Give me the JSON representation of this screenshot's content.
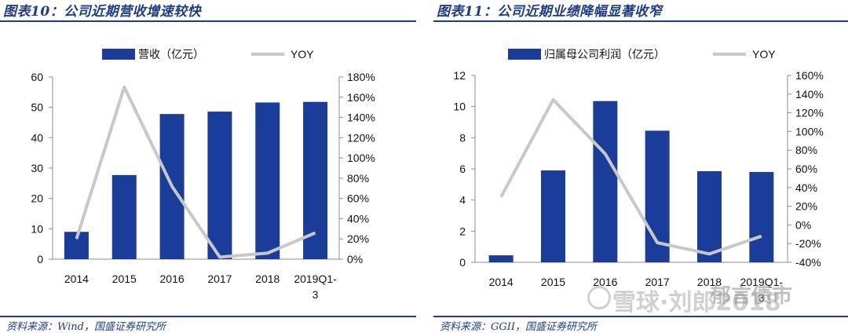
{
  "panels": [
    {
      "title": "图表10：公司近期营收增速较快",
      "source": "资料来源：Wind，国盛证券研究所",
      "bar_color": "#1a3d99",
      "line_color": "#c8c8c8"
    },
    {
      "title": "图表11：公司近期业绩降幅显著收窄",
      "source": "资料来源：GGII，国盛证券研究所",
      "bar_color": "#1a3d99",
      "line_color": "#c8c8c8"
    }
  ],
  "watermark": "雪球·刘郎2018",
  "watermark2": "郁言债市",
  "chart_data": [
    {
      "type": "bar",
      "categories": [
        "2014",
        "2015",
        "2016",
        "2017",
        "2018",
        "2019Q1-3"
      ],
      "series": [
        {
          "name": "营收（亿元）",
          "type": "bar",
          "axis": "left",
          "values": [
            9.0,
            27.7,
            47.8,
            48.6,
            51.6,
            51.8
          ]
        },
        {
          "name": "YOY",
          "type": "line",
          "axis": "right",
          "values": [
            0.2,
            1.7,
            0.72,
            0.02,
            0.06,
            0.26
          ]
        }
      ],
      "y_left": {
        "min": 0,
        "max": 60,
        "step": 10,
        "ticks": [
          "0",
          "10",
          "20",
          "30",
          "40",
          "50",
          "60"
        ]
      },
      "y_right": {
        "min": 0,
        "max": 1.8,
        "step": 0.2,
        "ticks": [
          "0%",
          "20%",
          "40%",
          "60%",
          "80%",
          "100%",
          "120%",
          "140%",
          "160%",
          "180%"
        ]
      },
      "legend": "top"
    },
    {
      "type": "bar",
      "categories": [
        "2014",
        "2015",
        "2016",
        "2017",
        "2018",
        "2019Q1-3"
      ],
      "series": [
        {
          "name": "归属母公司利润（亿元）",
          "type": "bar",
          "axis": "left",
          "values": [
            0.45,
            5.9,
            10.35,
            8.45,
            5.85,
            5.8
          ]
        },
        {
          "name": "YOY",
          "type": "line",
          "axis": "right",
          "values": [
            0.3,
            1.34,
            0.76,
            -0.19,
            -0.31,
            -0.12
          ]
        }
      ],
      "y_left": {
        "min": 0,
        "max": 12,
        "step": 2,
        "ticks": [
          "0",
          "2",
          "4",
          "6",
          "8",
          "10",
          "12"
        ]
      },
      "y_right": {
        "min": -0.4,
        "max": 1.6,
        "step": 0.2,
        "ticks": [
          "-40%",
          "-20%",
          "0%",
          "20%",
          "40%",
          "60%",
          "80%",
          "100%",
          "120%",
          "140%",
          "160%"
        ]
      },
      "legend": "top"
    }
  ]
}
